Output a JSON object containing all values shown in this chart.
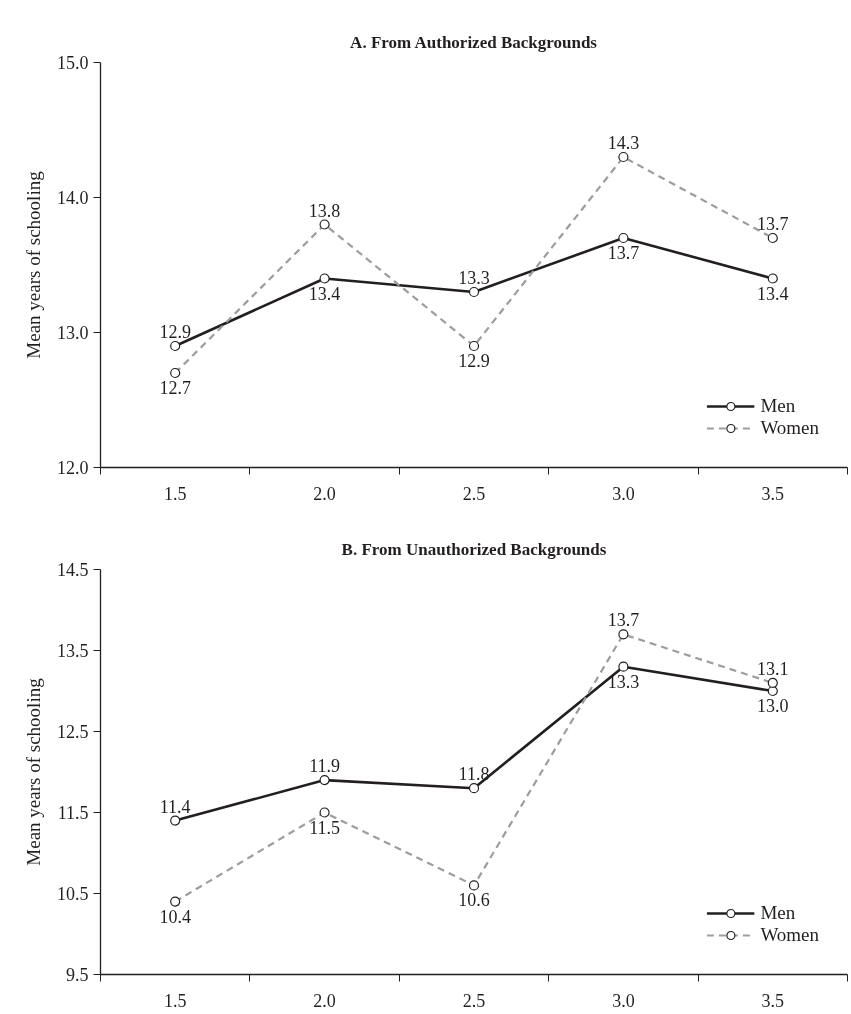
{
  "chart_data": [
    {
      "type": "line",
      "title": "A. From Authorized Backgrounds",
      "ylabel": "Mean years of schooling",
      "categories": [
        "1.5",
        "2.0",
        "2.5",
        "3.0",
        "3.5"
      ],
      "series": [
        {
          "name": "Men",
          "color": "#231f20",
          "line_style": "solid",
          "values": [
            12.9,
            13.4,
            13.3,
            13.7,
            13.4
          ],
          "value_labels": [
            "12.9",
            "13.4",
            "13.3",
            "13.7",
            "13.4"
          ]
        },
        {
          "name": "Women",
          "color": "#9d9d9d",
          "line_style": "dashed",
          "values": [
            12.7,
            13.8,
            12.9,
            14.3,
            13.7
          ],
          "value_labels": [
            "12.7",
            "13.8",
            "12.9",
            "14.3",
            "13.7"
          ]
        }
      ],
      "ylim": [
        12.0,
        15.0
      ],
      "yticks": [
        {
          "value": 12,
          "label": "12.0"
        },
        {
          "value": 13,
          "label": "13.0"
        },
        {
          "value": 14,
          "label": "14.0"
        },
        {
          "value": 15,
          "label": "15.0"
        }
      ],
      "marker": "circle",
      "legend": "bottom right"
    },
    {
      "type": "line",
      "title": "B. From Unauthorized Backgrounds",
      "ylabel": "Mean years of schooling",
      "categories": [
        "1.5",
        "2.0",
        "2.5",
        "3.0",
        "3.5"
      ],
      "series": [
        {
          "name": "Men",
          "color": "#231f20",
          "line_style": "solid",
          "values": [
            11.4,
            11.9,
            11.8,
            13.3,
            13.0
          ],
          "value_labels": [
            "11.4",
            "11.9",
            "11.8",
            "13.3",
            "13.0"
          ]
        },
        {
          "name": "Women",
          "color": "#9d9d9d",
          "line_style": "dashed",
          "values": [
            10.4,
            11.5,
            10.6,
            13.7,
            13.1
          ],
          "value_labels": [
            "10.4",
            "11.5",
            "10.6",
            "13.7",
            "13.1"
          ]
        }
      ],
      "ylim": [
        9.5,
        14.5
      ],
      "yticks": [
        9.5,
        10.5,
        11.5,
        12.5,
        13.5,
        14.5
      ],
      "marker": "circle",
      "legend": "bottom right"
    }
  ]
}
